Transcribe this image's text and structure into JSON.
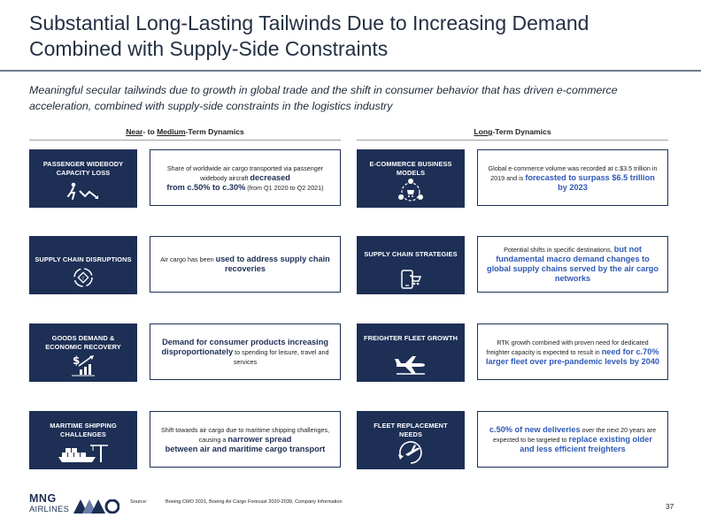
{
  "header": {
    "title_line1": "Substantial Long-Lasting Tailwinds Due to Increasing Demand",
    "title_line2": "Combined with Supply-Side Constraints",
    "subtitle": "Meaningful secular tailwinds due to growth in global trade and the shift in consumer behavior that has driven e-commerce acceleration, combined with supply-side constraints in the logistics industry"
  },
  "left_header": {
    "near": "Near",
    "dash_to": "- to ",
    "medium": "Medium",
    "rest": "-Term Dynamics"
  },
  "right_header": {
    "long": "Long",
    "rest": "-Term Dynamics"
  },
  "left": [
    {
      "label": "PASSENGER WIDEBODY CAPACITY LOSS",
      "icon": "declining-chart-person-icon",
      "d1": "Share of worldwide air cargo transported via passenger widebody aircraft ",
      "d2": "decreased",
      "d3": "from c.50% to c.30%",
      "d4": " (from Q1 2020 to Q2 2021)"
    },
    {
      "label": "SUPPLY CHAIN DISRUPTIONS",
      "icon": "supply-chain-cycle-icon",
      "d1": "Air cargo has been ",
      "d2": "used to address supply chain recoveries"
    },
    {
      "label": "GOODS DEMAND & ECONOMIC RECOVERY",
      "icon": "dollar-growth-icon",
      "d1": "Demand for consumer products increasing disproportionately",
      "d2": " to spending for leisure, travel and services"
    },
    {
      "label": "MARITIME SHIPPING CHALLENGES",
      "icon": "ship-crane-icon",
      "d1": "Shift towards air cargo due to maritime shipping challenges, causing a ",
      "d2": "narrower spread",
      "d3": "between air and maritime cargo transport"
    }
  ],
  "right": [
    {
      "label": "E-COMMERCE BUSINESS MODELS",
      "icon": "ecommerce-network-icon",
      "d1": "Global e-commerce volume was recorded at c.$3.5 trillion in 2019 and is ",
      "d2": "forecasted to surpass $6.5 trillion by 2023"
    },
    {
      "label": "SUPPLY CHAIN STRATEGIES",
      "icon": "mobile-cart-icon",
      "d1": "Potential shifts in specific destinations, ",
      "d2": "but not",
      "d3": "fundamental macro demand changes to global supply chains served by the air cargo networks"
    },
    {
      "label": "FREIGHTER FLEET GROWTH",
      "icon": "airplane-icon",
      "d1": "RTK growth combined with proven need for dedicated freighter capacity is expected to result in ",
      "d2": "need for c.70% larger fleet over pre-pandemic levels by 2040"
    },
    {
      "label": "FLEET REPLACEMENT NEEDS",
      "icon": "airplane-cycle-icon",
      "d1": "c.50% of new deliveries",
      "d2": " over the next 20 years are expected to be targeted to ",
      "d3": "replace existing older and less efficient freighters"
    }
  ],
  "footer": {
    "logo_top": "MNG",
    "logo_bottom": "AIRLINES",
    "source_key": "Source:",
    "source_text": "Boeing CMO 2021, Boeing Air Cargo Forecast 2020-2039, Company Information",
    "page": "37"
  }
}
